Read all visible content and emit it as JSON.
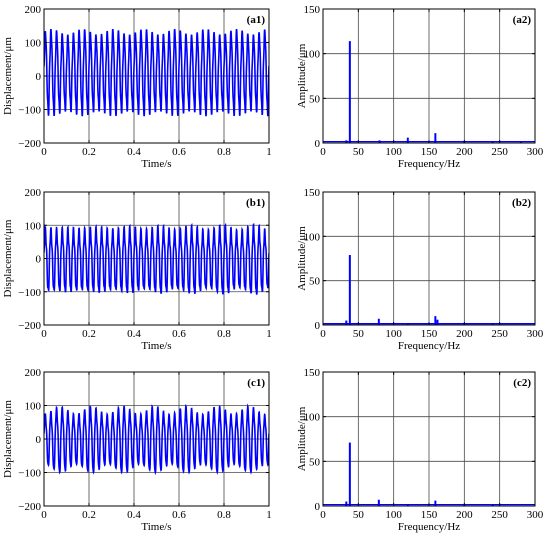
{
  "chart_data": [
    {
      "id": "a1",
      "type": "line",
      "panel_label": "(a1)",
      "xlabel": "Time/s",
      "ylabel": "Displacement/μm",
      "xlim": [
        0,
        1
      ],
      "ylim": [
        -200,
        200
      ],
      "xticks": [
        0,
        0.2,
        0.4,
        0.6,
        0.8,
        1
      ],
      "xtick_labels": [
        "0",
        "0.2",
        "0.4",
        "0.6",
        "0.8",
        "1"
      ],
      "yticks": [
        -200,
        -100,
        0,
        100,
        200
      ],
      "ytick_labels": [
        "−200",
        "−100",
        "0",
        "100",
        "200"
      ],
      "grid": true,
      "signal": {
        "frequency_hz": 40,
        "components": [
          {
            "f": 40,
            "amp": 112
          },
          {
            "f": 80,
            "amp": 5
          },
          {
            "f": 120,
            "amp": 6
          },
          {
            "f": 160,
            "amp": 11
          }
        ],
        "offset": 8,
        "max": 140,
        "min": -120
      }
    },
    {
      "id": "a2",
      "type": "bar",
      "panel_label": "(a2)",
      "xlabel": "Frequency/Hz",
      "ylabel": "Amplitude/μm",
      "xlim": [
        0,
        300
      ],
      "ylim": [
        0,
        150
      ],
      "xticks": [
        0,
        50,
        100,
        150,
        200,
        250,
        300
      ],
      "xtick_labels": [
        "0",
        "50",
        "100",
        "150",
        "200",
        "250",
        "300"
      ],
      "yticks": [
        0,
        50,
        100,
        150
      ],
      "ytick_labels": [
        "0",
        "50",
        "100",
        "150"
      ],
      "grid": true,
      "baseline": 1.5,
      "peaks": [
        {
          "x": 33,
          "y": 3
        },
        {
          "x": 38,
          "y": 114
        },
        {
          "x": 80,
          "y": 3
        },
        {
          "x": 120,
          "y": 6
        },
        {
          "x": 159,
          "y": 11
        },
        {
          "x": 200,
          "y": 1.5
        },
        {
          "x": 240,
          "y": 1.5
        },
        {
          "x": 280,
          "y": 2
        }
      ]
    },
    {
      "id": "b1",
      "type": "line",
      "panel_label": "(b1)",
      "xlabel": "Time/s",
      "ylabel": "Displacement/μm",
      "xlim": [
        0,
        1
      ],
      "ylim": [
        -200,
        200
      ],
      "xticks": [
        0,
        0.2,
        0.4,
        0.6,
        0.8,
        1
      ],
      "xtick_labels": [
        "0",
        "0.2",
        "0.4",
        "0.6",
        "0.8",
        "1"
      ],
      "yticks": [
        -200,
        -100,
        0,
        100,
        200
      ],
      "ytick_labels": [
        "−200",
        "−100",
        "0",
        "100",
        "200"
      ],
      "grid": true,
      "signal": {
        "frequency_hz": 40,
        "components": [
          {
            "f": 40,
            "amp": 79
          },
          {
            "f": 80,
            "amp": 7
          },
          {
            "f": 160,
            "amp": 10
          },
          {
            "f": 33,
            "amp": 5
          }
        ],
        "offset": 0,
        "max": 105,
        "min": -110
      }
    },
    {
      "id": "b2",
      "type": "bar",
      "panel_label": "(b2)",
      "xlabel": "Frequency/Hz",
      "ylabel": "Amplitude/μm",
      "xlim": [
        0,
        300
      ],
      "ylim": [
        0,
        150
      ],
      "xticks": [
        0,
        50,
        100,
        150,
        200,
        250,
        300
      ],
      "xtick_labels": [
        "0",
        "50",
        "100",
        "150",
        "200",
        "250",
        "300"
      ],
      "yticks": [
        0,
        50,
        100,
        150
      ],
      "ytick_labels": [
        "0",
        "50",
        "100",
        "150"
      ],
      "grid": true,
      "baseline": 1.5,
      "peaks": [
        {
          "x": 33,
          "y": 5
        },
        {
          "x": 38,
          "y": 79
        },
        {
          "x": 79,
          "y": 7
        },
        {
          "x": 120,
          "y": 2
        },
        {
          "x": 159,
          "y": 10
        },
        {
          "x": 162,
          "y": 6
        },
        {
          "x": 200,
          "y": 2
        },
        {
          "x": 240,
          "y": 2
        }
      ]
    },
    {
      "id": "c1",
      "type": "line",
      "panel_label": "(c1)",
      "xlabel": "Time/s",
      "ylabel": "Displacement/μm",
      "xlim": [
        0,
        1
      ],
      "ylim": [
        -200,
        200
      ],
      "xticks": [
        0,
        0.2,
        0.4,
        0.6,
        0.8,
        1
      ],
      "xtick_labels": [
        "0",
        "0.2",
        "0.4",
        "0.6",
        "0.8",
        "1"
      ],
      "yticks": [
        -200,
        -100,
        0,
        100,
        200
      ],
      "ytick_labels": [
        "−200",
        "−100",
        "0",
        "100",
        "200"
      ],
      "grid": true,
      "signal": {
        "frequency_hz": 40,
        "components": [
          {
            "f": 40,
            "amp": 70
          },
          {
            "f": 80,
            "amp": 7
          },
          {
            "f": 160,
            "amp": 6
          },
          {
            "f": 33,
            "amp": 6
          }
        ],
        "offset": 0,
        "max": 98,
        "min": -100
      }
    },
    {
      "id": "c2",
      "type": "bar",
      "panel_label": "(c2)",
      "xlabel": "Frequency/Hz",
      "ylabel": "Amplitude/μm",
      "xlim": [
        0,
        300
      ],
      "ylim": [
        0,
        150
      ],
      "xticks": [
        0,
        50,
        100,
        150,
        200,
        250,
        300
      ],
      "xtick_labels": [
        "0",
        "50",
        "100",
        "150",
        "200",
        "250",
        "300"
      ],
      "yticks": [
        0,
        50,
        100,
        150
      ],
      "ytick_labels": [
        "0",
        "50",
        "100",
        "150"
      ],
      "grid": true,
      "baseline": 1.5,
      "peaks": [
        {
          "x": 33,
          "y": 5
        },
        {
          "x": 38,
          "y": 71
        },
        {
          "x": 79,
          "y": 7
        },
        {
          "x": 120,
          "y": 2
        },
        {
          "x": 159,
          "y": 6
        },
        {
          "x": 200,
          "y": 2
        },
        {
          "x": 240,
          "y": 2
        }
      ]
    }
  ],
  "colors": {
    "line": "#0000ff",
    "grid": "#4a4a4a",
    "axes": "#000000",
    "background": "#ffffff"
  }
}
